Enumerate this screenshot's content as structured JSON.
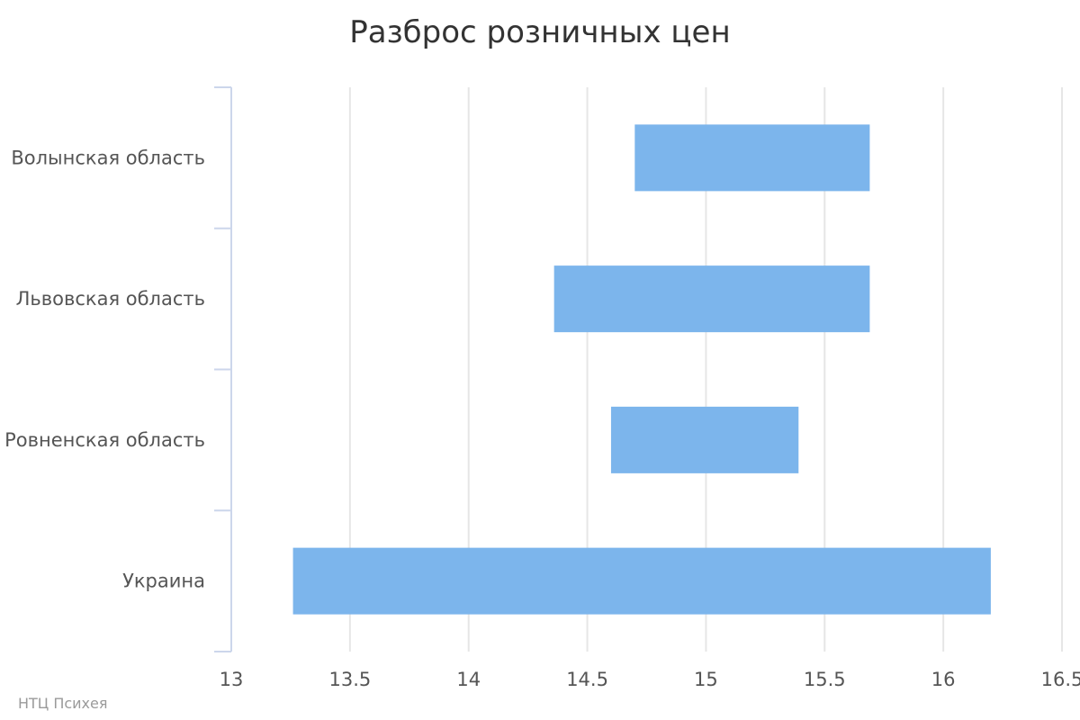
{
  "chart_data": {
    "type": "bar",
    "orientation": "horizontal",
    "range": true,
    "title": "Разброс розничных цен",
    "categories": [
      "Волынская область",
      "Львовская область",
      "Ровненская область",
      "Украина"
    ],
    "series": [
      {
        "low": [
          14.7,
          14.36,
          14.6,
          13.26
        ],
        "high": [
          15.69,
          15.69,
          15.39,
          16.2
        ]
      }
    ],
    "xlim": [
      13,
      16.5
    ],
    "x_ticks": [
      "13",
      "13.5",
      "14",
      "14.5",
      "15",
      "15.5",
      "16",
      "16.5"
    ],
    "grid": true,
    "bar_color": "#7cb5ec",
    "grid_color": "#e6e6e6",
    "axis_color": "#ccd6eb"
  },
  "credits": "НТЦ Психея"
}
